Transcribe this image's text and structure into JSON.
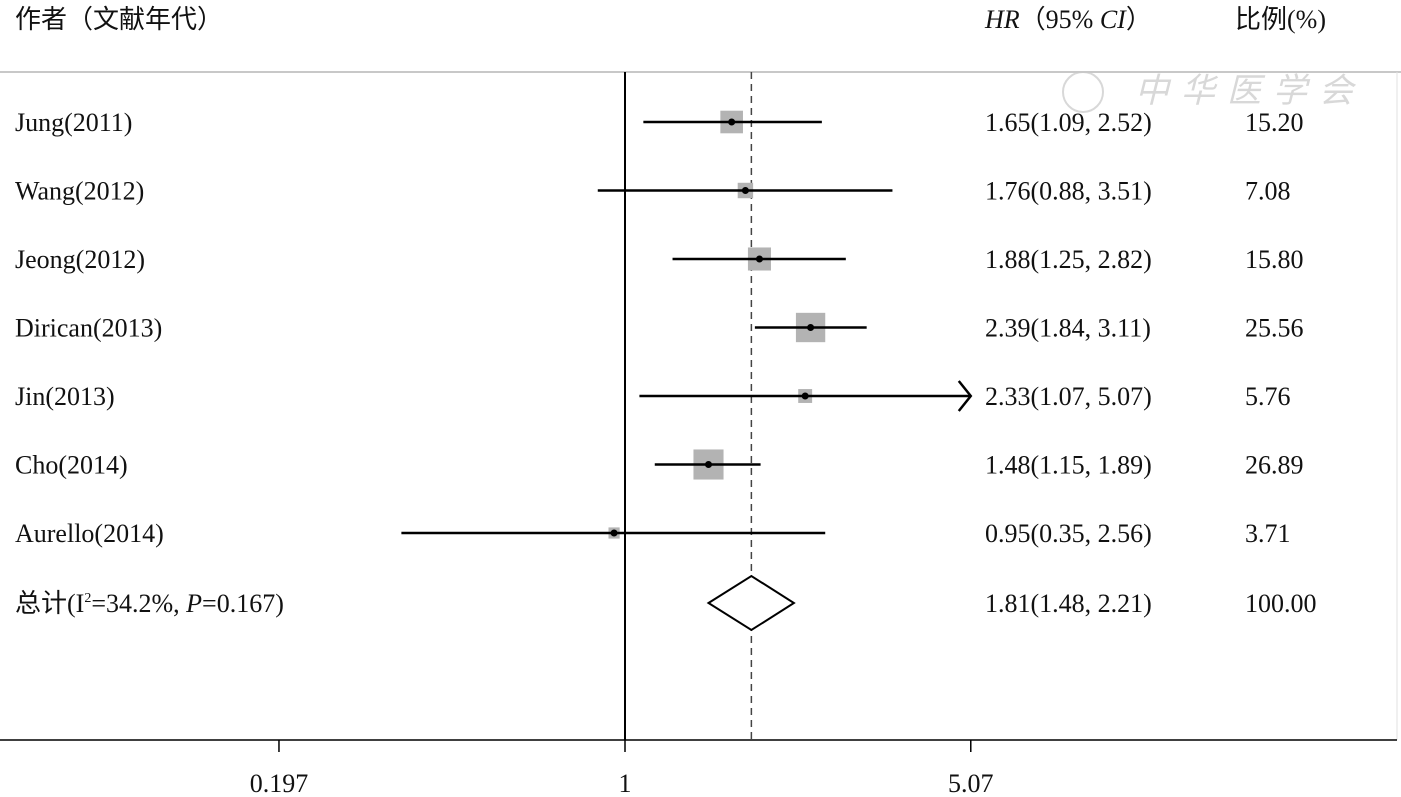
{
  "chart_data": {
    "type": "forest",
    "scale": "log",
    "headers": {
      "study": "作者（文献年代）",
      "hr_prefix": "HR",
      "hr_mid": "（95% ",
      "hr_ci": "CI",
      "hr_suffix": "）",
      "weight": "比例(%)"
    },
    "studies": [
      {
        "label": "Jung(2011)",
        "hr": 1.65,
        "lower": 1.09,
        "upper": 2.52,
        "hr_text": "1.65(1.09, 2.52)",
        "weight": 15.2,
        "weight_text": "15.20"
      },
      {
        "label": "Wang(2012)",
        "hr": 1.76,
        "lower": 0.88,
        "upper": 3.51,
        "hr_text": "1.76(0.88, 3.51)",
        "weight": 7.08,
        "weight_text": "7.08"
      },
      {
        "label": "Jeong(2012)",
        "hr": 1.88,
        "lower": 1.25,
        "upper": 2.82,
        "hr_text": "1.88(1.25, 2.82)",
        "weight": 15.8,
        "weight_text": "15.80"
      },
      {
        "label": "Dirican(2013)",
        "hr": 2.39,
        "lower": 1.84,
        "upper": 3.11,
        "hr_text": "2.39(1.84, 3.11)",
        "weight": 25.56,
        "weight_text": "25.56"
      },
      {
        "label": "Jin(2013)",
        "hr": 2.33,
        "lower": 1.07,
        "upper": 5.07,
        "hr_text": "2.33(1.07, 5.07)",
        "weight": 5.76,
        "weight_text": "5.76",
        "arrow": true
      },
      {
        "label": "Cho(2014)",
        "hr": 1.48,
        "lower": 1.15,
        "upper": 1.89,
        "hr_text": "1.48(1.15, 1.89)",
        "weight": 26.89,
        "weight_text": "26.89"
      },
      {
        "label": "Aurello(2014)",
        "hr": 0.95,
        "lower": 0.35,
        "upper": 2.56,
        "hr_text": "0.95(0.35, 2.56)",
        "weight": 3.71,
        "weight_text": "3.71"
      }
    ],
    "overall": {
      "label_prefix": "总计(I",
      "label_sup": "2",
      "label_mid": "=34.2%, ",
      "label_p": "P",
      "label_suffix": "=0.167)",
      "hr": 1.81,
      "lower": 1.48,
      "upper": 2.21,
      "hr_text": "1.81(1.48, 2.21)",
      "weight_text": "100.00"
    },
    "x_ticks": [
      {
        "value": 0.197,
        "label": "0.197"
      },
      {
        "value": 1,
        "label": "1"
      },
      {
        "value": 5.07,
        "label": "5.07"
      }
    ],
    "xlim": [
      0.197,
      5.07
    ],
    "null_line": 1,
    "summary_line": 1.81
  },
  "watermark": "中华医学会",
  "colors": {
    "box": "#b3b3b3",
    "line": "#000000",
    "grid": "#c8c8c8"
  }
}
